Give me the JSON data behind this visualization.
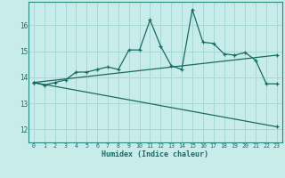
{
  "xlabel": "Humidex (Indice chaleur)",
  "bg_color": "#c8ecea",
  "grid_color": "#a8d8d4",
  "line_color": "#1a6b62",
  "spine_color": "#2a8a7e",
  "xlim": [
    -0.5,
    23.5
  ],
  "ylim": [
    11.5,
    16.9
  ],
  "yticks": [
    12,
    13,
    14,
    15,
    16
  ],
  "xticks": [
    0,
    1,
    2,
    3,
    4,
    5,
    6,
    7,
    8,
    9,
    10,
    11,
    12,
    13,
    14,
    15,
    16,
    17,
    18,
    19,
    20,
    21,
    22,
    23
  ],
  "series1_x": [
    0,
    1,
    2,
    3,
    4,
    5,
    6,
    7,
    8,
    9,
    10,
    11,
    12,
    13,
    14,
    15,
    16,
    17,
    18,
    19,
    20,
    21,
    22,
    23
  ],
  "series1_y": [
    13.8,
    13.7,
    13.8,
    13.9,
    14.2,
    14.2,
    14.3,
    14.4,
    14.3,
    15.05,
    15.05,
    16.2,
    15.2,
    14.45,
    14.3,
    16.6,
    15.35,
    15.3,
    14.9,
    14.85,
    14.95,
    14.65,
    13.75,
    13.75
  ],
  "series2_x": [
    0,
    23
  ],
  "series2_y": [
    13.8,
    14.85
  ],
  "series3_x": [
    0,
    23
  ],
  "series3_y": [
    13.8,
    12.1
  ]
}
